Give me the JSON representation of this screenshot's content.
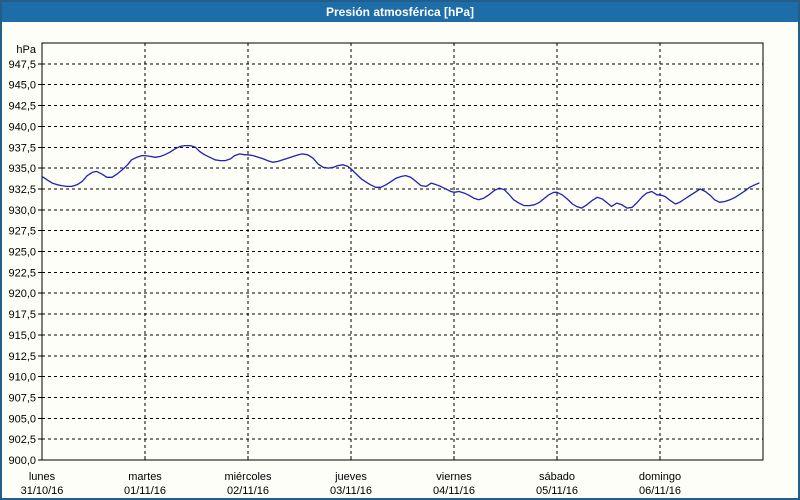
{
  "window": {
    "title": "Presión atmosférica [hPa]"
  },
  "colors": {
    "titlebar_bg": "#1d6ea8",
    "window_border": "#215e8c",
    "background": "#fdfef8",
    "grid": "#000000",
    "frame": "#000000",
    "line": "#2121b0",
    "title_text": "#ffffff",
    "axis_text": "#000000"
  },
  "chart_data": {
    "type": "line",
    "title": "Presión atmosférica [hPa]",
    "legend": "none",
    "grid": "dashed",
    "y_axis": {
      "unit_label": "hPa",
      "min": 900.0,
      "max": 950.0,
      "tick_step": 2.5,
      "tick_values": [
        947.5,
        945.0,
        942.5,
        940.0,
        937.5,
        935.0,
        932.5,
        930.0,
        927.5,
        925.0,
        922.5,
        920.0,
        917.5,
        915.0,
        912.5,
        910.0,
        907.5,
        905.0,
        902.5,
        900.0
      ],
      "tick_labels": [
        "947,5",
        "945,0",
        "942,5",
        "940,0",
        "937,5",
        "935,0",
        "932,5",
        "930,0",
        "927,5",
        "925,0",
        "922,5",
        "920,0",
        "917,5",
        "915,0",
        "912,5",
        "910,0",
        "907,5",
        "905,0",
        "902,5",
        "900,0"
      ]
    },
    "x_axis": {
      "range_days": [
        0,
        7
      ],
      "days": [
        {
          "name": "lunes",
          "date": "31/10/16"
        },
        {
          "name": "martes",
          "date": "01/11/16"
        },
        {
          "name": "miércoles",
          "date": "02/11/16"
        },
        {
          "name": "jueves",
          "date": "03/11/16"
        },
        {
          "name": "viernes",
          "date": "04/11/16"
        },
        {
          "name": "sábado",
          "date": "05/11/16"
        },
        {
          "name": "domingo",
          "date": "06/11/16"
        }
      ]
    },
    "series": [
      {
        "name": "Presión atmosférica",
        "unit": "hPa",
        "color": "#2121b0",
        "points": [
          [
            0.0,
            934.0
          ],
          [
            0.05,
            933.6
          ],
          [
            0.1,
            933.2
          ],
          [
            0.15,
            933.0
          ],
          [
            0.19,
            932.9
          ],
          [
            0.24,
            932.8
          ],
          [
            0.29,
            932.8
          ],
          [
            0.34,
            933.0
          ],
          [
            0.39,
            933.4
          ],
          [
            0.44,
            934.1
          ],
          [
            0.49,
            934.5
          ],
          [
            0.53,
            934.6
          ],
          [
            0.58,
            934.3
          ],
          [
            0.63,
            933.9
          ],
          [
            0.68,
            933.9
          ],
          [
            0.73,
            934.3
          ],
          [
            0.78,
            934.8
          ],
          [
            0.83,
            935.4
          ],
          [
            0.87,
            936.0
          ],
          [
            0.92,
            936.3
          ],
          [
            0.97,
            936.5
          ],
          [
            1.0,
            936.5
          ],
          [
            1.05,
            936.4
          ],
          [
            1.1,
            936.3
          ],
          [
            1.15,
            936.4
          ],
          [
            1.19,
            936.6
          ],
          [
            1.24,
            936.9
          ],
          [
            1.29,
            937.3
          ],
          [
            1.34,
            937.6
          ],
          [
            1.39,
            937.7
          ],
          [
            1.44,
            937.7
          ],
          [
            1.49,
            937.5
          ],
          [
            1.53,
            937.0
          ],
          [
            1.58,
            936.6
          ],
          [
            1.63,
            936.3
          ],
          [
            1.68,
            936.0
          ],
          [
            1.73,
            935.9
          ],
          [
            1.78,
            935.9
          ],
          [
            1.83,
            936.1
          ],
          [
            1.87,
            936.5
          ],
          [
            1.92,
            936.7
          ],
          [
            1.97,
            936.6
          ],
          [
            2.0,
            936.6
          ],
          [
            2.05,
            936.5
          ],
          [
            2.1,
            936.3
          ],
          [
            2.15,
            936.1
          ],
          [
            2.19,
            935.9
          ],
          [
            2.24,
            935.7
          ],
          [
            2.29,
            935.8
          ],
          [
            2.34,
            936.0
          ],
          [
            2.39,
            936.2
          ],
          [
            2.44,
            936.4
          ],
          [
            2.49,
            936.6
          ],
          [
            2.53,
            936.7
          ],
          [
            2.58,
            936.6
          ],
          [
            2.63,
            936.2
          ],
          [
            2.68,
            935.5
          ],
          [
            2.73,
            935.1
          ],
          [
            2.78,
            935.0
          ],
          [
            2.83,
            935.1
          ],
          [
            2.87,
            935.3
          ],
          [
            2.92,
            935.4
          ],
          [
            2.97,
            935.2
          ],
          [
            3.0,
            934.9
          ],
          [
            3.05,
            934.3
          ],
          [
            3.1,
            933.7
          ],
          [
            3.15,
            933.3
          ],
          [
            3.19,
            933.0
          ],
          [
            3.24,
            932.7
          ],
          [
            3.29,
            932.7
          ],
          [
            3.34,
            933.0
          ],
          [
            3.39,
            933.4
          ],
          [
            3.44,
            933.8
          ],
          [
            3.49,
            934.0
          ],
          [
            3.53,
            934.1
          ],
          [
            3.58,
            933.9
          ],
          [
            3.63,
            933.4
          ],
          [
            3.68,
            932.9
          ],
          [
            3.73,
            932.8
          ],
          [
            3.78,
            933.2
          ],
          [
            3.83,
            933.0
          ],
          [
            3.87,
            932.8
          ],
          [
            3.92,
            932.5
          ],
          [
            3.97,
            932.2
          ],
          [
            4.0,
            932.1
          ],
          [
            4.05,
            932.2
          ],
          [
            4.1,
            932.0
          ],
          [
            4.15,
            931.7
          ],
          [
            4.19,
            931.4
          ],
          [
            4.24,
            931.2
          ],
          [
            4.29,
            931.4
          ],
          [
            4.34,
            931.8
          ],
          [
            4.39,
            932.3
          ],
          [
            4.44,
            932.6
          ],
          [
            4.49,
            932.4
          ],
          [
            4.53,
            931.9
          ],
          [
            4.58,
            931.2
          ],
          [
            4.63,
            930.8
          ],
          [
            4.68,
            930.5
          ],
          [
            4.73,
            930.5
          ],
          [
            4.78,
            930.6
          ],
          [
            4.83,
            930.9
          ],
          [
            4.87,
            931.3
          ],
          [
            4.92,
            931.8
          ],
          [
            4.97,
            932.1
          ],
          [
            5.0,
            932.1
          ],
          [
            5.05,
            931.8
          ],
          [
            5.1,
            931.3
          ],
          [
            5.15,
            930.7
          ],
          [
            5.19,
            930.4
          ],
          [
            5.24,
            930.2
          ],
          [
            5.29,
            930.6
          ],
          [
            5.34,
            931.1
          ],
          [
            5.39,
            931.5
          ],
          [
            5.44,
            931.3
          ],
          [
            5.49,
            930.8
          ],
          [
            5.53,
            930.4
          ],
          [
            5.58,
            930.8
          ],
          [
            5.63,
            930.6
          ],
          [
            5.68,
            930.2
          ],
          [
            5.73,
            930.3
          ],
          [
            5.78,
            930.9
          ],
          [
            5.83,
            931.6
          ],
          [
            5.87,
            932.0
          ],
          [
            5.92,
            932.2
          ],
          [
            5.97,
            931.8
          ],
          [
            6.0,
            931.8
          ],
          [
            6.05,
            931.6
          ],
          [
            6.1,
            931.1
          ],
          [
            6.15,
            930.7
          ],
          [
            6.19,
            930.9
          ],
          [
            6.24,
            931.3
          ],
          [
            6.29,
            931.7
          ],
          [
            6.34,
            932.1
          ],
          [
            6.39,
            932.5
          ],
          [
            6.44,
            932.2
          ],
          [
            6.49,
            931.7
          ],
          [
            6.53,
            931.2
          ],
          [
            6.58,
            930.9
          ],
          [
            6.63,
            931.0
          ],
          [
            6.68,
            931.2
          ],
          [
            6.73,
            931.5
          ],
          [
            6.78,
            931.9
          ],
          [
            6.83,
            932.3
          ],
          [
            6.87,
            932.7
          ],
          [
            6.92,
            933.0
          ],
          [
            6.96,
            933.2
          ]
        ]
      }
    ]
  }
}
